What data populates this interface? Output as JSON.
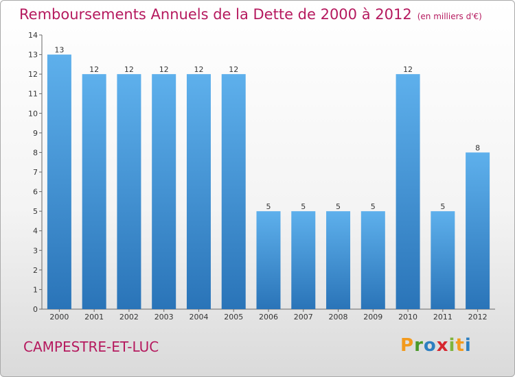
{
  "chart_data": {
    "type": "bar",
    "title": "Remboursements Annuels de la Dette de 2000 à 2012",
    "unit_label": "(en milliers d'€)",
    "categories": [
      "2000",
      "2001",
      "2002",
      "2003",
      "2004",
      "2005",
      "2006",
      "2007",
      "2008",
      "2009",
      "2010",
      "2011",
      "2012"
    ],
    "values": [
      13,
      12,
      12,
      12,
      12,
      12,
      5,
      5,
      5,
      5,
      12,
      5,
      8
    ],
    "yticks": [
      0,
      1,
      2,
      3,
      4,
      5,
      6,
      7,
      8,
      9,
      10,
      11,
      12,
      13,
      14
    ],
    "ylim": [
      0,
      14
    ],
    "xlabel": "",
    "ylabel": "",
    "grid": false,
    "bar_color": "#4f9fe0",
    "bar_color_dark": "#2a78c0"
  },
  "footer": {
    "location": "CAMPESTRE-ET-LUC",
    "logo_letters": [
      "P",
      "r",
      "o",
      "x",
      "i",
      "t",
      "i"
    ]
  },
  "colors": {
    "title": "#b5195e",
    "axis": "#555555"
  }
}
